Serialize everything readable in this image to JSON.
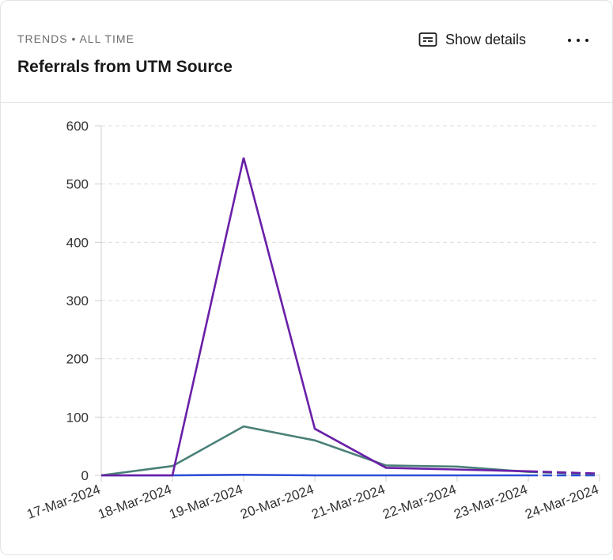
{
  "header": {
    "subtitle": "TRENDS • ALL TIME",
    "title": "Referrals from UTM Source",
    "details_label": "Show details",
    "details_icon": "subtitles-icon",
    "more_icon": "more-horizontal-icon"
  },
  "chart_data": {
    "type": "line",
    "x": [
      "17-Mar-2024",
      "18-Mar-2024",
      "19-Mar-2024",
      "20-Mar-2024",
      "21-Mar-2024",
      "22-Mar-2024",
      "23-Mar-2024",
      "24-Mar-2024"
    ],
    "yticks": [
      0,
      100,
      200,
      300,
      400,
      500,
      600
    ],
    "ylim": [
      0,
      600
    ],
    "grid": true,
    "dashed_last_segment": true,
    "series": [
      {
        "color": "#6a1fa8",
        "values": [
          0,
          0,
          545,
          80,
          13,
          10,
          7,
          3
        ]
      },
      {
        "color": "#4a8078",
        "values": [
          0,
          16,
          84,
          60,
          17,
          15,
          6,
          2
        ]
      },
      {
        "color": "#2d4fd6",
        "values": [
          0,
          0,
          1,
          0,
          0,
          0,
          0,
          0
        ]
      }
    ]
  }
}
